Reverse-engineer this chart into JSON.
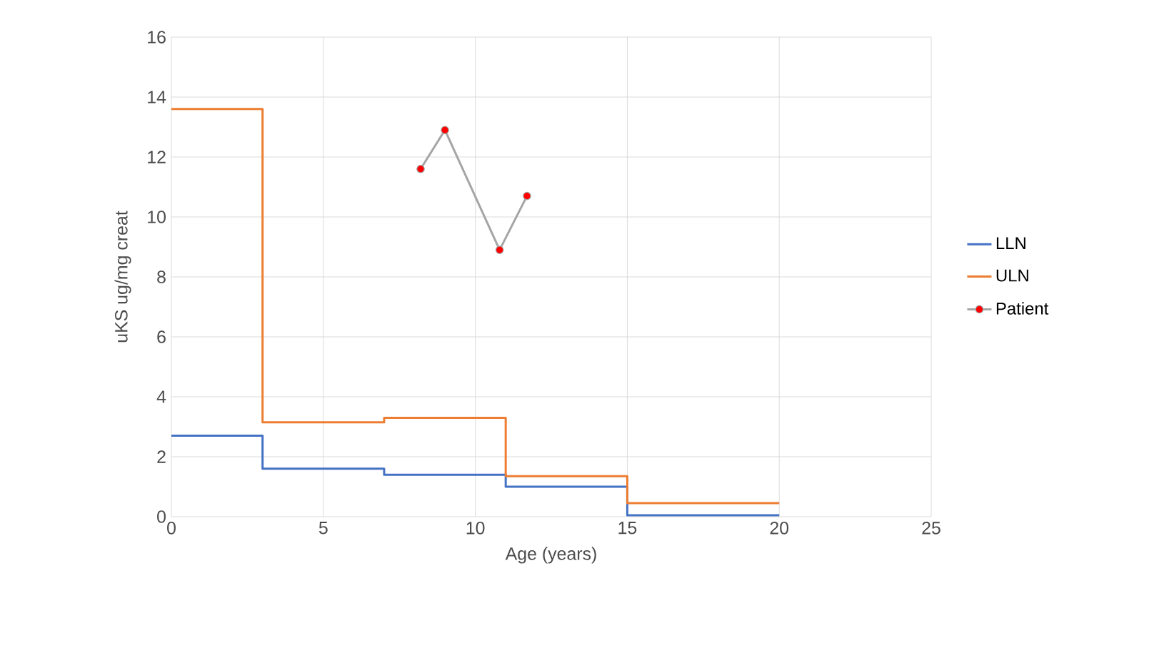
{
  "chart_data": {
    "type": "step",
    "xlabel": "Age (years)",
    "ylabel": "uKS ug/mg creat",
    "xlim": [
      0,
      25
    ],
    "xticks": [
      0,
      5,
      10,
      15,
      20,
      25
    ],
    "ylim": [
      0,
      16
    ],
    "yticks": [
      0,
      2,
      4,
      6,
      8,
      10,
      12,
      14,
      16
    ],
    "grid": true,
    "legend": "right",
    "series": [
      {
        "name": "LLN",
        "color": "#4472c4",
        "x": [
          0,
          3,
          7,
          11,
          15,
          20
        ],
        "values": [
          2.7,
          1.6,
          1.4,
          1.0,
          0.05,
          0.05
        ]
      },
      {
        "name": "ULN",
        "color": "#ed7d31",
        "x": [
          0,
          3,
          7,
          11,
          15,
          20
        ],
        "values": [
          13.6,
          3.15,
          3.3,
          1.35,
          0.45,
          0.45
        ]
      },
      {
        "name": "Patient",
        "color": "#a5a5a5",
        "type": "line",
        "marker": "circle",
        "x": [
          8.2,
          9.0,
          10.8,
          11.7
        ],
        "values": [
          11.6,
          12.9,
          8.9,
          10.7
        ]
      }
    ]
  }
}
